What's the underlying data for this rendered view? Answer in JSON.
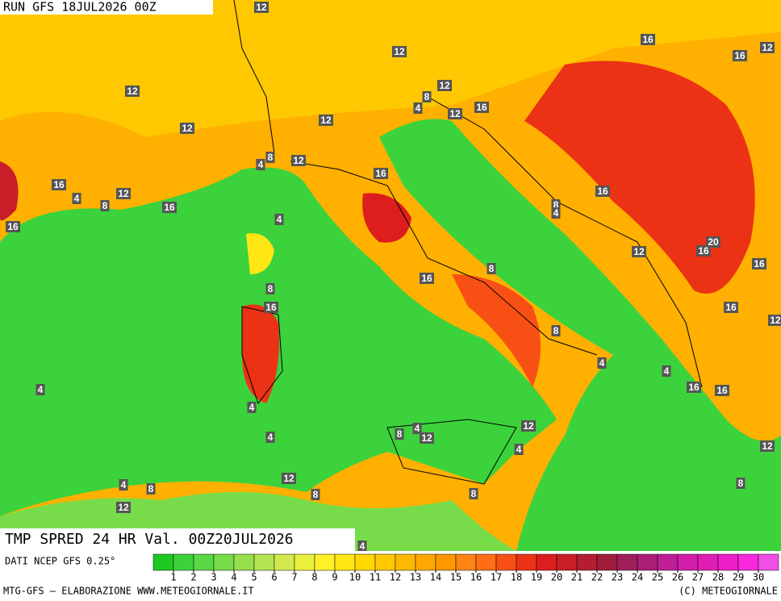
{
  "header": {
    "run": "RUN GFS 18JUL2026 00Z"
  },
  "footer": {
    "title": "TMP SPRED 24 HR Val. 00Z20JUL2026",
    "source": "DATI NCEP GFS 0.25°",
    "credit": "MTG-GFS — ELABORAZIONE WWW.METEOGIORNALE.IT",
    "copyright": "(C) METEOGIORNALE"
  },
  "colorbar": {
    "ticks": [
      1,
      2,
      3,
      4,
      5,
      6,
      7,
      8,
      9,
      10,
      11,
      12,
      13,
      14,
      15,
      16,
      17,
      18,
      19,
      20,
      21,
      22,
      23,
      24,
      25,
      26,
      27,
      28,
      29,
      30
    ],
    "colors": [
      "#1ec81e",
      "#3ed23a",
      "#5ad846",
      "#78dc4a",
      "#96e04e",
      "#b4e450",
      "#d2e84e",
      "#eaf03e",
      "#fff028",
      "#ffe614",
      "#ffd800",
      "#ffc800",
      "#ffb800",
      "#ffa800",
      "#ff9800",
      "#ff8414",
      "#ff6e14",
      "#f85014",
      "#ec3214",
      "#dc1e1e",
      "#c81e28",
      "#b41e32",
      "#a01e3c",
      "#a01e5a",
      "#aa1e78",
      "#be1e96",
      "#d21eaa",
      "#e01eb4",
      "#ee1ec8",
      "#f828dc",
      "#f050e6"
    ]
  },
  "contour_labels": [
    12,
    16,
    16,
    12,
    12,
    12,
    12,
    8,
    4,
    16,
    12,
    12,
    12,
    8,
    4,
    12,
    16,
    16,
    4,
    8,
    12,
    16,
    16,
    16,
    8,
    4,
    4,
    20,
    16,
    12,
    16,
    8,
    16,
    8,
    16,
    16,
    12,
    8,
    4,
    4,
    4,
    16,
    16,
    4,
    12,
    8,
    4,
    12,
    4,
    12,
    4,
    12,
    4,
    8,
    8,
    8,
    8,
    12,
    4
  ]
}
